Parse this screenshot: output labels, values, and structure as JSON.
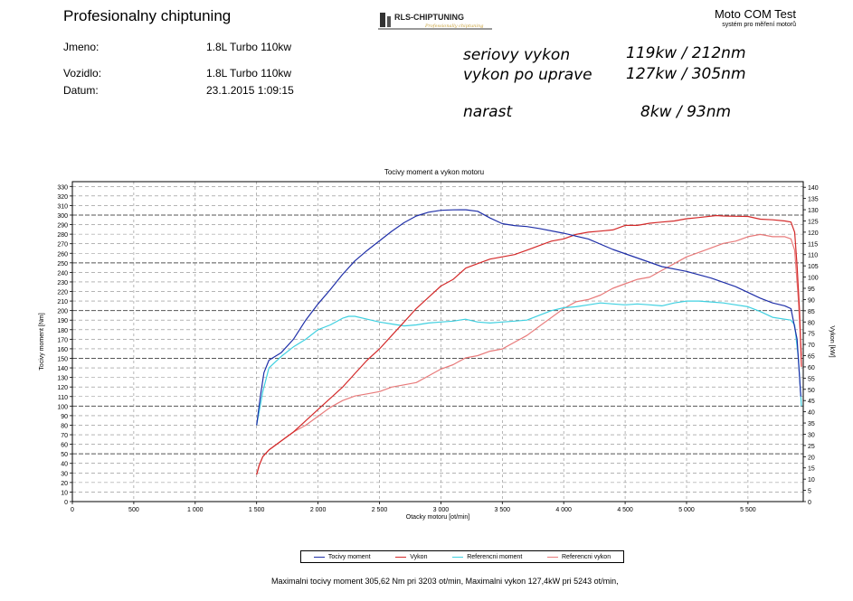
{
  "header": {
    "title": "Profesionalny chiptuning",
    "brand_name": "Moto COM Test",
    "brand_sub": "systém pro měření motorů",
    "logo_text": "RLS-CHIPTUNING",
    "logo_sub": "Professionally chiptuning"
  },
  "info": {
    "jmeno_label": "Jmeno:",
    "jmeno_value": "1.8L Turbo 110kw",
    "vozidlo_label": "Vozidlo:",
    "vozidlo_value": "1.8L Turbo 110kw",
    "datum_label": "Datum:",
    "datum_value": "23.1.2015 1:09:15"
  },
  "notes": {
    "line1_label": "seriovy vykon",
    "line1_value": "119kw / 212nm",
    "line2_label": "vykon po uprave",
    "line2_value": "127kw / 305nm",
    "line3_label": "narast",
    "line3_value": "8kw / 93nm"
  },
  "footer": {
    "text": "Maximalni tocivy moment 305,62 Nm pri 3203 ot/min,  Maximalni vykon 127,4kW pri 5243 ot/min,"
  },
  "colors": {
    "torque": "#1f2fa8",
    "power": "#d42a2a",
    "ref_torque": "#3fd0e0",
    "ref_power": "#e87a7a"
  },
  "chart_data": {
    "type": "line",
    "title": "Tocivy moment a vykon motoru",
    "xlabel": "Otacky motoru [ot/min]",
    "ylabel_left": "Tocivy moment [Nm]",
    "ylabel_right": "Vykon [kW]",
    "xlim": [
      0,
      5950
    ],
    "ylim_left": [
      0,
      335
    ],
    "ylim_right": [
      0,
      142.5
    ],
    "x_ticks": [
      0,
      500,
      1000,
      1500,
      2000,
      2500,
      3000,
      3500,
      4000,
      4500,
      5000,
      5500
    ],
    "x_tick_labels": [
      "0",
      "500",
      "1 000",
      "1 500",
      "2 000",
      "2 500",
      "3 000",
      "3 500",
      "4 000",
      "4 500",
      "5 000",
      "5 500"
    ],
    "y_left_ticks": [
      0,
      10,
      20,
      30,
      40,
      50,
      60,
      70,
      80,
      90,
      100,
      110,
      120,
      130,
      140,
      150,
      160,
      170,
      180,
      190,
      200,
      210,
      220,
      230,
      240,
      250,
      260,
      270,
      280,
      290,
      300,
      310,
      320,
      330
    ],
    "y_right_ticks": [
      0,
      5,
      10,
      15,
      20,
      25,
      30,
      35,
      40,
      45,
      50,
      55,
      60,
      65,
      70,
      75,
      80,
      85,
      90,
      95,
      100,
      105,
      110,
      115,
      120,
      125,
      130,
      135,
      140
    ],
    "grid": true,
    "legend_position": "bottom",
    "series": [
      {
        "name": "Tocivy moment",
        "axis": "left",
        "color": "#1f2fa8",
        "x": [
          1500,
          1530,
          1560,
          1600,
          1650,
          1700,
          1800,
          1900,
          2000,
          2100,
          2200,
          2300,
          2400,
          2500,
          2600,
          2700,
          2800,
          2900,
          3000,
          3100,
          3203,
          3300,
          3400,
          3500,
          3600,
          3700,
          3800,
          4000,
          4200,
          4400,
          4600,
          4800,
          5000,
          5200,
          5400,
          5500,
          5600,
          5700,
          5800,
          5850,
          5900,
          5930
        ],
        "y": [
          80,
          110,
          135,
          148,
          152,
          156,
          170,
          190,
          207,
          222,
          238,
          252,
          263,
          273,
          283,
          292,
          299,
          303,
          305,
          305.5,
          305.6,
          304,
          297,
          291,
          289,
          288,
          286,
          281,
          275,
          264,
          255,
          246,
          241,
          234,
          225,
          219,
          213,
          208,
          205,
          202,
          170,
          110
        ]
      },
      {
        "name": "Vykon",
        "axis": "right",
        "color": "#d42a2a",
        "x": [
          1500,
          1520,
          1550,
          1600,
          1700,
          1800,
          1900,
          2000,
          2100,
          2200,
          2300,
          2400,
          2500,
          2600,
          2700,
          2800,
          2900,
          3000,
          3100,
          3203,
          3300,
          3400,
          3500,
          3600,
          3700,
          3800,
          3900,
          4000,
          4100,
          4200,
          4300,
          4400,
          4500,
          4600,
          4700,
          4800,
          4900,
          5000,
          5100,
          5243,
          5300,
          5400,
          5500,
          5600,
          5700,
          5800,
          5850,
          5880,
          5900,
          5920,
          5935
        ],
        "y": [
          12,
          16,
          20,
          23,
          27,
          31,
          36,
          41,
          46,
          51,
          57,
          63,
          68,
          74,
          80,
          86,
          91,
          96,
          99,
          104,
          106,
          108,
          109,
          110,
          112,
          114,
          116,
          117,
          119,
          120,
          120.5,
          121,
          123,
          123,
          124,
          124.5,
          125,
          126,
          126.5,
          127.4,
          127.2,
          127.1,
          127,
          125.8,
          125.5,
          125,
          124.5,
          120,
          105,
          85,
          60
        ]
      },
      {
        "name": "Referencni moment",
        "axis": "left",
        "color": "#3fd0e0",
        "x": [
          1500,
          1550,
          1600,
          1700,
          1800,
          1900,
          2000,
          2100,
          2200,
          2250,
          2300,
          2400,
          2500,
          2600,
          2700,
          2800,
          2900,
          3000,
          3100,
          3200,
          3300,
          3400,
          3500,
          3600,
          3700,
          3800,
          3900,
          4000,
          4100,
          4200,
          4300,
          4400,
          4500,
          4600,
          4700,
          4800,
          4900,
          5000,
          5100,
          5200,
          5300,
          5400,
          5500,
          5600,
          5700,
          5800,
          5850,
          5880,
          5910,
          5935
        ],
        "y": [
          80,
          115,
          140,
          152,
          162,
          170,
          180,
          185,
          192,
          194,
          194,
          191,
          188,
          186,
          184,
          185,
          187,
          188,
          189,
          191,
          188,
          187,
          188,
          189,
          190,
          195,
          200,
          203,
          204,
          206,
          208,
          207,
          206,
          207,
          206,
          205,
          208,
          210,
          210,
          209,
          208,
          206,
          204,
          199,
          193,
          191,
          190,
          185,
          150,
          100
        ]
      },
      {
        "name": "Referencni vykon",
        "axis": "right",
        "color": "#e87a7a",
        "x": [
          1500,
          1520,
          1550,
          1600,
          1700,
          1800,
          1900,
          2000,
          2100,
          2200,
          2300,
          2400,
          2500,
          2600,
          2700,
          2800,
          2900,
          3000,
          3100,
          3200,
          3300,
          3400,
          3500,
          3600,
          3700,
          3800,
          3900,
          4000,
          4100,
          4200,
          4300,
          4400,
          4500,
          4600,
          4700,
          4800,
          4900,
          5000,
          5100,
          5200,
          5300,
          5400,
          5500,
          5600,
          5700,
          5800,
          5850,
          5880,
          5910,
          5935
        ],
        "y": [
          12,
          16,
          20,
          23,
          27,
          31,
          34,
          38,
          42,
          45,
          47,
          48,
          49,
          51,
          52,
          53,
          56,
          59,
          61,
          64,
          65,
          67,
          68,
          71,
          74,
          78,
          82,
          86,
          89,
          90,
          92,
          95,
          97,
          99,
          100,
          103,
          106,
          109,
          111,
          113,
          115,
          116,
          118,
          119,
          118,
          118,
          117,
          112,
          90,
          65
        ]
      }
    ]
  }
}
